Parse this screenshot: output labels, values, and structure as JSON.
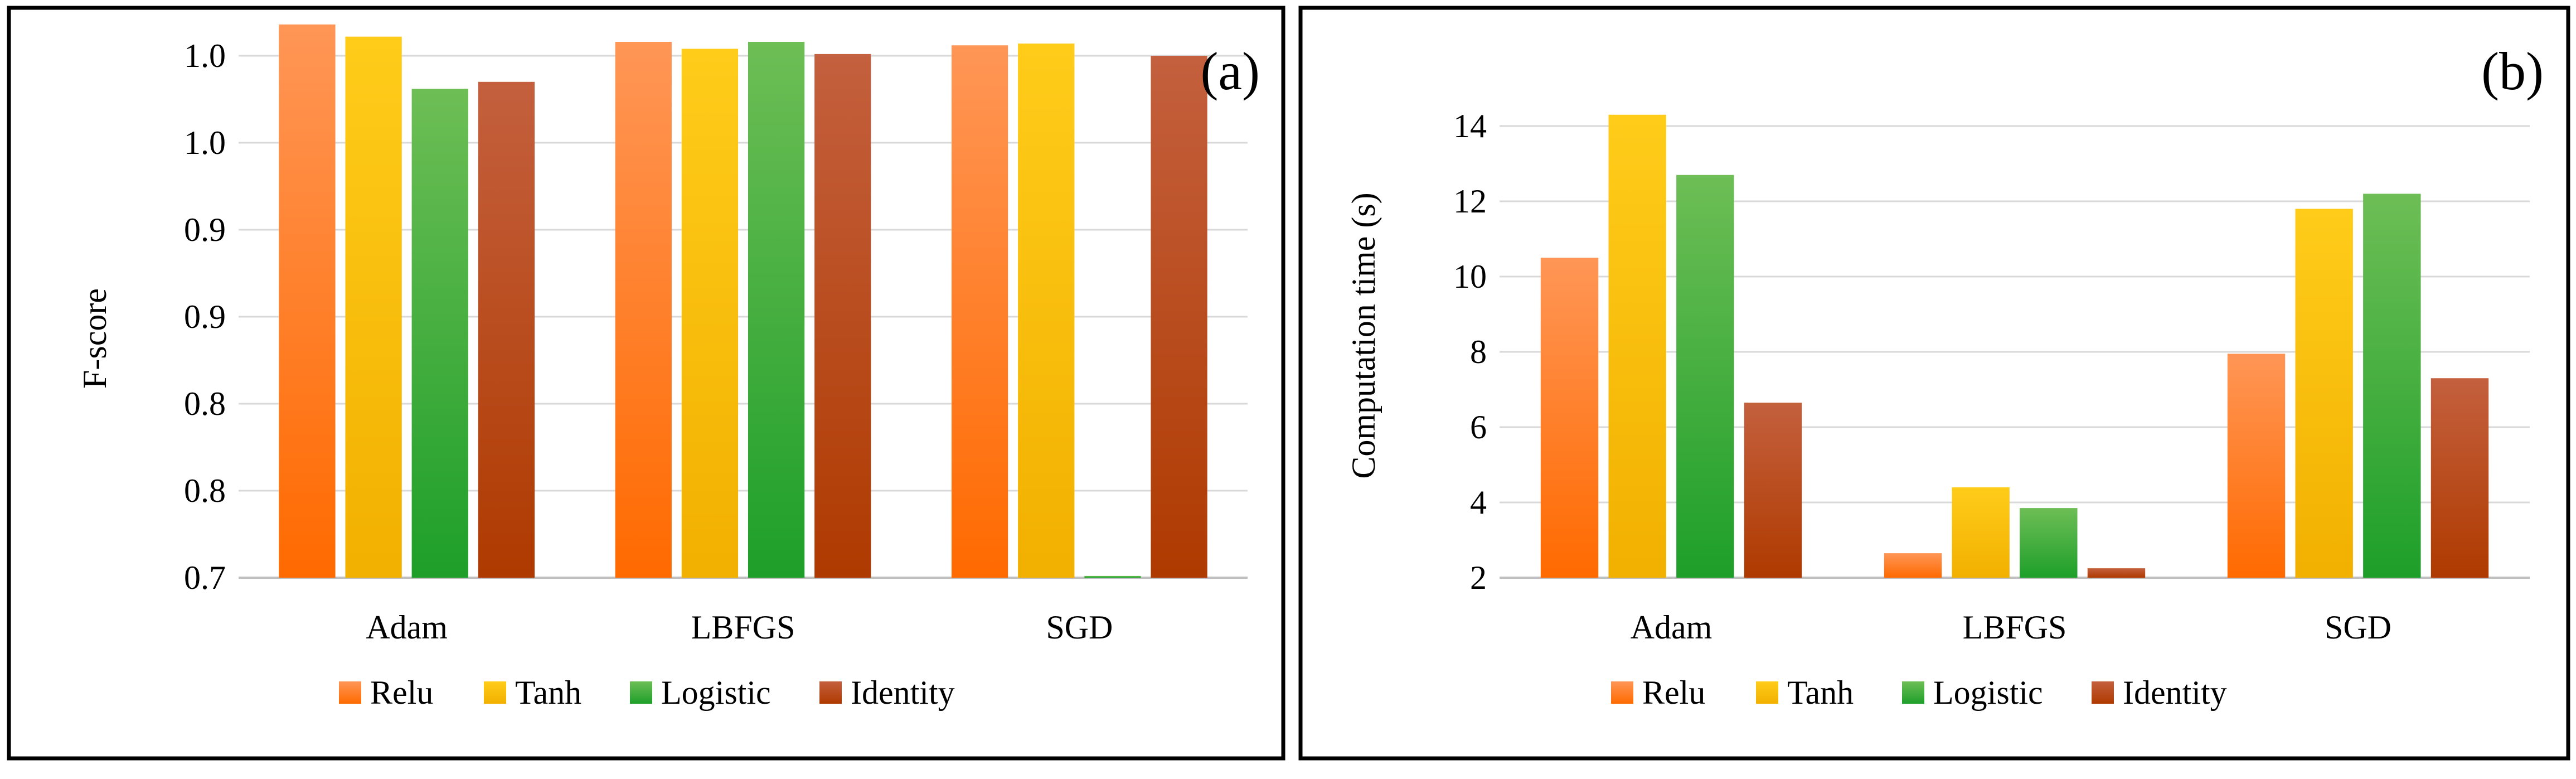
{
  "chart_data": [
    {
      "type": "bar",
      "panel_label": "(a)",
      "ylabel": "F-score",
      "categories": [
        "Adam",
        "LBFGS",
        "SGD"
      ],
      "series": [
        {
          "name": "Relu",
          "values": [
            1.018,
            1.008,
            1.006
          ]
        },
        {
          "name": "Tanh",
          "values": [
            1.011,
            1.004,
            1.007
          ]
        },
        {
          "name": "Logistic",
          "values": [
            0.981,
            1.008,
            0.701
          ]
        },
        {
          "name": "Identity",
          "values": [
            0.985,
            1.001,
            1.0
          ]
        }
      ],
      "ylim": [
        0.7,
        1.0
      ],
      "ytick_values": [
        0.7,
        0.75,
        0.8,
        0.85,
        0.9,
        0.95,
        1.0
      ],
      "ytick_labels": [
        "0.7",
        "0.8",
        "0.8",
        "0.9",
        "0.9",
        "1.0",
        "1.0"
      ],
      "legend": [
        "Relu",
        "Tanh",
        "Logistic",
        "Identity"
      ],
      "legend_position": "bottom",
      "grid": true
    },
    {
      "type": "bar",
      "panel_label": "(b)",
      "ylabel": "Computation time (s)",
      "categories": [
        "Adam",
        "LBFGS",
        "SGD"
      ],
      "series": [
        {
          "name": "Relu",
          "values": [
            10.5,
            2.65,
            7.95
          ]
        },
        {
          "name": "Tanh",
          "values": [
            14.3,
            4.4,
            11.8
          ]
        },
        {
          "name": "Logistic",
          "values": [
            12.7,
            3.85,
            12.2
          ]
        },
        {
          "name": "Identity",
          "values": [
            6.65,
            2.25,
            7.3
          ]
        }
      ],
      "ylim": [
        2,
        14.8
      ],
      "ytick_values": [
        2,
        4,
        6,
        8,
        10,
        12,
        14
      ],
      "ytick_labels": [
        "2",
        "4",
        "6",
        "8",
        "10",
        "12",
        "14"
      ],
      "legend": [
        "Relu",
        "Tanh",
        "Logistic",
        "Identity"
      ],
      "legend_position": "bottom",
      "grid": true
    }
  ],
  "colors": {
    "Relu": [
      "#FF9656",
      "#FF6A00"
    ],
    "Tanh": [
      "#FFCC1A",
      "#F2B000"
    ],
    "Logistic": [
      "#6DBE55",
      "#1E9F2A"
    ],
    "Identity": [
      "#C4603E",
      "#AF3A00"
    ]
  }
}
